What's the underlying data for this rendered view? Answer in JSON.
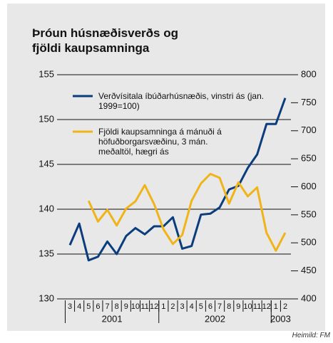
{
  "chart_data": {
    "type": "line",
    "title": "Þróun húsnæðisverðs og fjöldi kaupsamninga",
    "source": "Heimild: FM",
    "categories": [
      "3",
      "4",
      "5",
      "6",
      "7",
      "8",
      "9",
      "10",
      "11",
      "12",
      "1",
      "2",
      "3",
      "4",
      "5",
      "6",
      "7",
      "8",
      "9",
      "10",
      "11",
      "12",
      "1",
      "2"
    ],
    "year_groups": [
      {
        "label": "2001",
        "start": 0
      },
      {
        "label": "2002",
        "start": 10
      },
      {
        "label": "2003",
        "start": 22
      }
    ],
    "series": [
      {
        "name": "Verðvísitala íbúðarhúsnæðis, vinstri ás (jan. 1999=100)",
        "color": "#0b3d7d",
        "axis": "y",
        "values": [
          136.0,
          138.4,
          134.3,
          134.7,
          136.4,
          135.0,
          137.0,
          137.9,
          137.2,
          138.1,
          138.1,
          139.1,
          135.6,
          135.9,
          139.4,
          139.5,
          140.2,
          142.2,
          142.6,
          144.6,
          146.1,
          149.5,
          149.5,
          152.4
        ]
      },
      {
        "name": "Fjöldi kaupsamninga á mánuði á höfuðborgarsvæðinu, 3 mán. meðaltöl, hægri ás",
        "color": "#f0b419",
        "axis": "y2",
        "values": [
          null,
          null,
          575,
          538,
          559,
          531,
          561,
          574,
          603,
          569,
          524,
          498,
          514,
          575,
          606,
          623,
          616,
          570,
          608,
          583,
          599,
          518,
          486,
          518
        ]
      }
    ],
    "ylim": [
      130,
      155
    ],
    "yticks": [
      130,
      135,
      140,
      145,
      150,
      155
    ],
    "y2lim": [
      400,
      800
    ],
    "y2ticks": [
      400,
      450,
      500,
      550,
      600,
      650,
      700,
      750,
      800
    ],
    "grid": true
  }
}
